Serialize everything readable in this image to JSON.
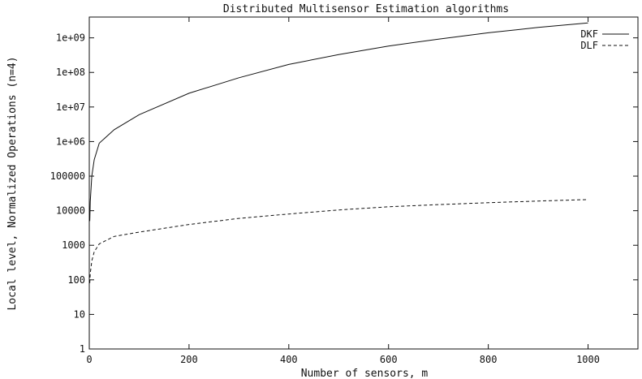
{
  "chart_data": {
    "type": "line",
    "title": "Distributed Multisensor Estimation algorithms",
    "xlabel": "Number of sensors, m",
    "ylabel": "Local level, Normalized Operations (n=4)",
    "xlim": [
      0,
      1100
    ],
    "ylim": [
      1,
      4000000000
    ],
    "yscale": "log",
    "xticks": [
      0,
      200,
      400,
      600,
      800,
      1000
    ],
    "xtick_labels": [
      "0",
      "200",
      "400",
      "600",
      "800",
      "1000"
    ],
    "yticks": [
      1,
      10,
      100,
      1000,
      10000,
      100000,
      1000000,
      10000000,
      100000000,
      1000000000
    ],
    "ytick_labels": [
      "1",
      "10",
      "100",
      "1000",
      "10000",
      "100000",
      "1e+06",
      "1e+07",
      "1e+08",
      "1e+09"
    ],
    "grid": false,
    "legend_position": "top-right",
    "series": [
      {
        "name": "DKF",
        "style": "solid",
        "x": [
          1,
          2,
          5,
          10,
          20,
          50,
          100,
          200,
          300,
          400,
          500,
          600,
          700,
          800,
          900,
          1000
        ],
        "y": [
          5000,
          18000,
          100000,
          300000,
          900000,
          2200000,
          6000000,
          25000000,
          70000000,
          170000000,
          330000000,
          580000000,
          920000000,
          1400000000,
          2000000000,
          2700000000
        ]
      },
      {
        "name": "DLF",
        "style": "dashed",
        "x": [
          1,
          2,
          5,
          10,
          20,
          50,
          100,
          200,
          300,
          400,
          500,
          600,
          700,
          800,
          900,
          1000
        ],
        "y": [
          80,
          150,
          350,
          650,
          1100,
          1800,
          2400,
          4000,
          6000,
          8000,
          10500,
          13000,
          15000,
          17000,
          19000,
          21000
        ]
      }
    ]
  }
}
